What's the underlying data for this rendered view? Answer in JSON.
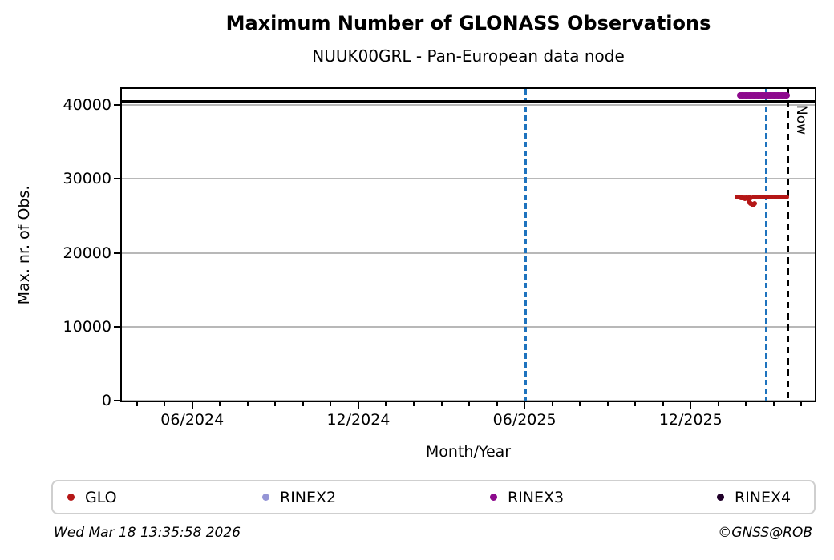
{
  "figure": {
    "title": "Maximum Number of GLONASS Observations",
    "subtitle": "NUUK00GRL - Pan-European data node"
  },
  "footer": {
    "timestamp": "Wed Mar 18 13:35:58 2026",
    "credit": "©GNSS@ROB"
  },
  "legend": {
    "position": "bottom",
    "items": [
      {
        "label": "GLO",
        "color": "#b51717",
        "marker": "dot-icon"
      },
      {
        "label": "RINEX2",
        "color": "#9595d6",
        "marker": "dot-icon"
      },
      {
        "label": "RINEX3",
        "color": "#8d0a8d",
        "marker": "dot-icon"
      },
      {
        "label": "RINEX4",
        "color": "#20002a",
        "marker": "dot-icon"
      }
    ]
  },
  "chart_data": {
    "type": "scatter",
    "title": "Maximum Number of GLONASS Observations",
    "subtitle": "NUUK00GRL - Pan-European data node",
    "xlabel": "Month/Year",
    "ylabel": "Max. nr. of Obs.",
    "x_domain_decimal_year": [
      2024.205,
      2026.29
    ],
    "y_domain": [
      0,
      42200
    ],
    "grid": {
      "axis": "y",
      "color": "#b8b8b8",
      "on": true
    },
    "y_ticks": [
      {
        "v": 0,
        "label": "0"
      },
      {
        "v": 10000,
        "label": "10000"
      },
      {
        "v": 20000,
        "label": "20000"
      },
      {
        "v": 30000,
        "label": "30000"
      },
      {
        "v": 40000,
        "label": "40000"
      }
    ],
    "x_major_ticks": [
      {
        "t": 2024.4167,
        "label": "06/2024"
      },
      {
        "t": 2024.9167,
        "label": "12/2024"
      },
      {
        "t": 2025.4167,
        "label": "06/2025"
      },
      {
        "t": 2025.9167,
        "label": "12/2025"
      }
    ],
    "x_minor_ticks": {
      "start": 2024.25,
      "end": 2026.25,
      "step_months": 1
    },
    "reference_line": {
      "value": 40500,
      "color": "#000000"
    },
    "vlines": [
      {
        "t": 2025.421,
        "color": "#1e73be",
        "width": 3,
        "dash": [
          7,
          4
        ],
        "label": ""
      },
      {
        "t": 2026.143,
        "color": "#1e73be",
        "width": 3,
        "dash": [
          7,
          4
        ],
        "label": ""
      },
      {
        "t": 2026.21,
        "color": "#000000",
        "width": 2,
        "dash": [
          8,
          6
        ],
        "label": "Now"
      }
    ],
    "series": [
      {
        "name": "GLO",
        "color": "#b51717",
        "marker_px": 6,
        "points": [
          [
            2026.056,
            27580
          ],
          [
            2026.059,
            27600
          ],
          [
            2026.062,
            27570
          ],
          [
            2026.065,
            27540
          ],
          [
            2026.068,
            27500
          ],
          [
            2026.071,
            27460
          ],
          [
            2026.074,
            27430
          ],
          [
            2026.077,
            27400
          ],
          [
            2026.08,
            27390
          ],
          [
            2026.083,
            27400
          ],
          [
            2026.086,
            27430
          ],
          [
            2026.089,
            27450
          ],
          [
            2026.092,
            27440
          ],
          [
            2026.095,
            27420
          ],
          [
            2026.098,
            27400
          ],
          [
            2026.092,
            26950
          ],
          [
            2026.095,
            26800
          ],
          [
            2026.098,
            26650
          ],
          [
            2026.101,
            26550
          ],
          [
            2026.104,
            26470
          ],
          [
            2026.107,
            26550
          ],
          [
            2026.11,
            26700
          ],
          [
            2026.106,
            27520
          ],
          [
            2026.11,
            27550
          ],
          [
            2026.114,
            27570
          ],
          [
            2026.118,
            27580
          ],
          [
            2026.122,
            27570
          ],
          [
            2026.126,
            27560
          ],
          [
            2026.13,
            27550
          ],
          [
            2026.134,
            27560
          ],
          [
            2026.138,
            27570
          ],
          [
            2026.142,
            27580
          ],
          [
            2026.146,
            27570
          ],
          [
            2026.15,
            27560
          ],
          [
            2026.154,
            27550
          ],
          [
            2026.158,
            27560
          ],
          [
            2026.162,
            27570
          ],
          [
            2026.166,
            27570
          ],
          [
            2026.17,
            27560
          ],
          [
            2026.174,
            27560
          ],
          [
            2026.178,
            27560
          ],
          [
            2026.182,
            27560
          ],
          [
            2026.186,
            27560
          ],
          [
            2026.19,
            27560
          ],
          [
            2026.194,
            27560
          ],
          [
            2026.198,
            27560
          ],
          [
            2026.202,
            27560
          ],
          [
            2026.206,
            27560
          ]
        ]
      },
      {
        "name": "RINEX2",
        "color": "#9595d6",
        "marker_px": 6,
        "points": []
      },
      {
        "name": "RINEX3",
        "color": "#8d0a8d",
        "marker_px": 8,
        "points": [
          [
            2026.066,
            41300
          ],
          [
            2026.07,
            41300
          ],
          [
            2026.074,
            41300
          ],
          [
            2026.078,
            41300
          ],
          [
            2026.082,
            41300
          ],
          [
            2026.086,
            41300
          ],
          [
            2026.09,
            41300
          ],
          [
            2026.094,
            41300
          ],
          [
            2026.098,
            41300
          ],
          [
            2026.102,
            41300
          ],
          [
            2026.106,
            41300
          ],
          [
            2026.11,
            41300
          ],
          [
            2026.114,
            41300
          ],
          [
            2026.118,
            41300
          ],
          [
            2026.122,
            41300
          ],
          [
            2026.126,
            41300
          ],
          [
            2026.13,
            41300
          ],
          [
            2026.134,
            41300
          ],
          [
            2026.138,
            41300
          ],
          [
            2026.142,
            41300
          ],
          [
            2026.146,
            41300
          ],
          [
            2026.15,
            41300
          ],
          [
            2026.154,
            41300
          ],
          [
            2026.158,
            41300
          ],
          [
            2026.162,
            41300
          ],
          [
            2026.166,
            41300
          ],
          [
            2026.17,
            41300
          ],
          [
            2026.174,
            41300
          ],
          [
            2026.178,
            41300
          ],
          [
            2026.182,
            41300
          ],
          [
            2026.186,
            41300
          ],
          [
            2026.19,
            41300
          ],
          [
            2026.194,
            41300
          ],
          [
            2026.198,
            41300
          ],
          [
            2026.202,
            41300
          ],
          [
            2026.206,
            41300
          ]
        ]
      },
      {
        "name": "RINEX4",
        "color": "#20002a",
        "marker_px": 6,
        "points": []
      }
    ]
  }
}
